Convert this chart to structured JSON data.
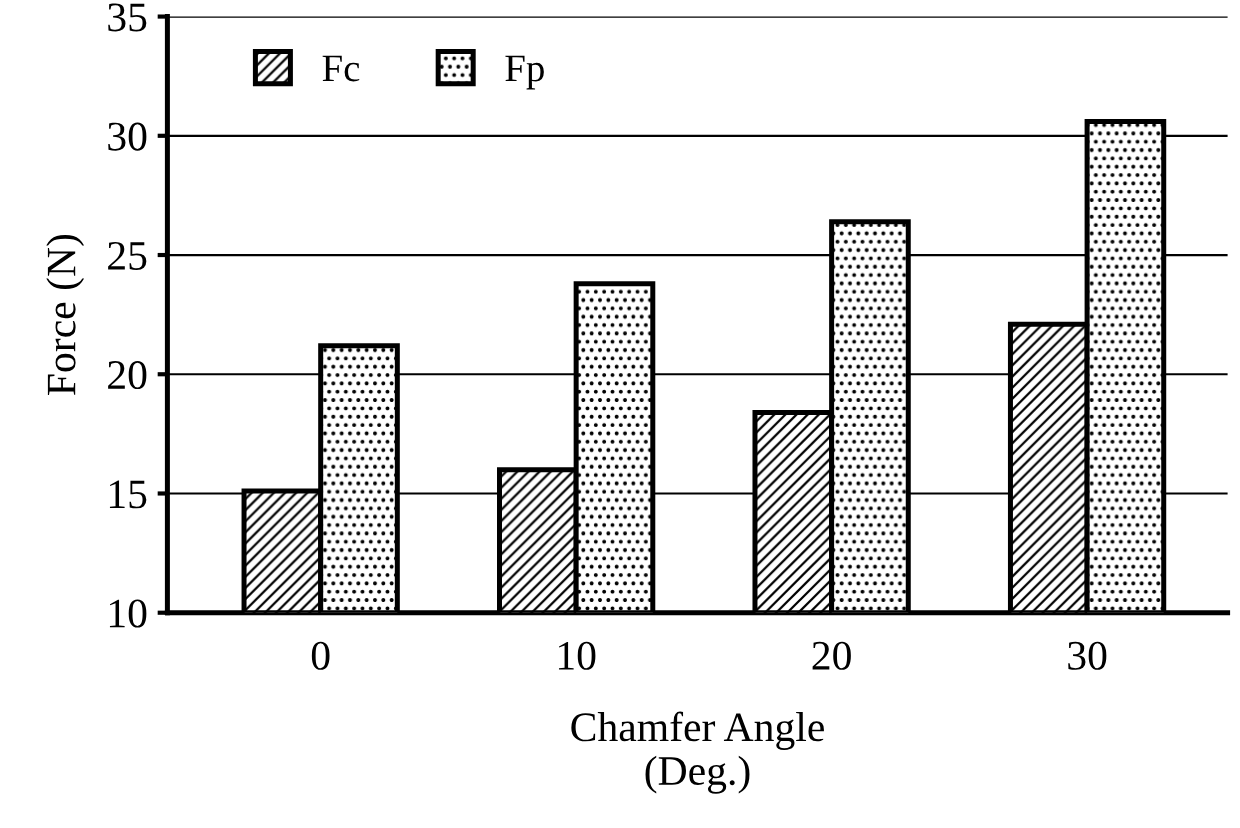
{
  "chart_data": {
    "type": "bar",
    "xlabel": "Chamfer Angle\n(Deg.)",
    "ylabel": "Force (N)",
    "categories": [
      "0",
      "10",
      "20",
      "30"
    ],
    "series": [
      {
        "name": "Fc",
        "color": "#000000",
        "values": [
          15.1,
          16.0,
          18.4,
          22.1
        ]
      },
      {
        "name": "Fp",
        "color": "#000000",
        "values": [
          21.2,
          23.8,
          26.4,
          30.6
        ]
      }
    ],
    "ylim": [
      10,
      35
    ],
    "yticks": [
      10,
      15,
      20,
      25,
      30,
      35
    ],
    "grid": "y",
    "legend": "top left"
  }
}
